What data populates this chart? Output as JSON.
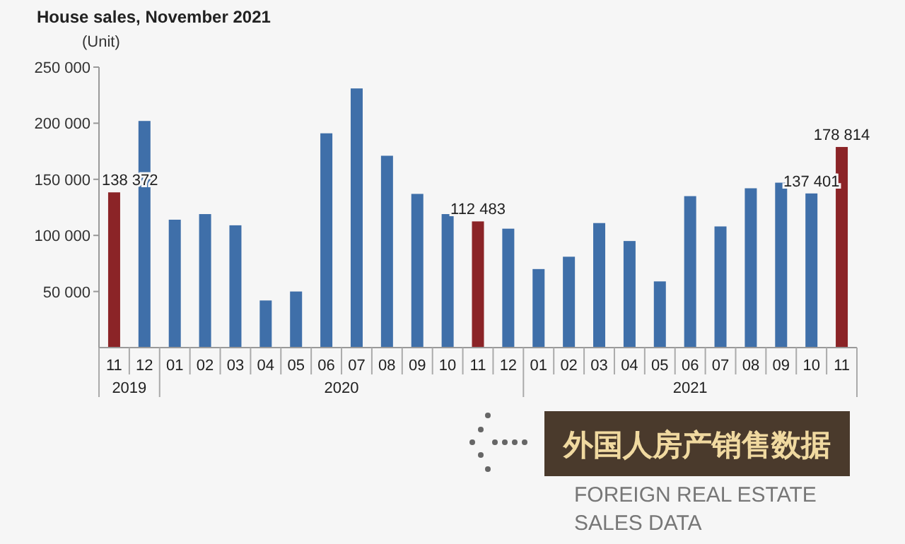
{
  "chart_data": {
    "type": "bar",
    "title": "House sales, November 2021",
    "ylabel": "(Unit)",
    "categories": [
      "11",
      "12",
      "01",
      "02",
      "03",
      "04",
      "05",
      "06",
      "07",
      "08",
      "09",
      "10",
      "11",
      "12",
      "01",
      "02",
      "03",
      "04",
      "05",
      "06",
      "07",
      "08",
      "09",
      "10",
      "11"
    ],
    "values": [
      138372,
      202000,
      114000,
      119000,
      109000,
      42000,
      50000,
      191000,
      231000,
      171000,
      137000,
      119000,
      112483,
      106000,
      70000,
      81000,
      111000,
      95000,
      59000,
      135000,
      108000,
      142000,
      147000,
      137401,
      178814
    ],
    "value_labels": [
      "138 372",
      null,
      null,
      null,
      null,
      null,
      null,
      null,
      null,
      null,
      null,
      null,
      "112 483",
      null,
      null,
      null,
      null,
      null,
      null,
      null,
      null,
      null,
      null,
      "137 401",
      "178 814"
    ],
    "colors": [
      "#8b2427",
      "#3f6fa9",
      "#3f6fa9",
      "#3f6fa9",
      "#3f6fa9",
      "#3f6fa9",
      "#3f6fa9",
      "#3f6fa9",
      "#3f6fa9",
      "#3f6fa9",
      "#3f6fa9",
      "#3f6fa9",
      "#8b2427",
      "#3f6fa9",
      "#3f6fa9",
      "#3f6fa9",
      "#3f6fa9",
      "#3f6fa9",
      "#3f6fa9",
      "#3f6fa9",
      "#3f6fa9",
      "#3f6fa9",
      "#3f6fa9",
      "#3f6fa9",
      "#8b2427"
    ],
    "ylim": [
      0,
      250000
    ],
    "yticks": [
      {
        "value": 50000,
        "label": "50 000"
      },
      {
        "value": 100000,
        "label": "100 000"
      },
      {
        "value": 150000,
        "label": "150 000"
      },
      {
        "value": 200000,
        "label": "200 000"
      },
      {
        "value": 250000,
        "label": "250 000"
      }
    ],
    "grid": false,
    "annotations": [
      "2019",
      "2020",
      "2021",
      "外国人房产销售数据",
      "FOREIGN REAL ESTATE SALES DATA"
    ]
  }
}
